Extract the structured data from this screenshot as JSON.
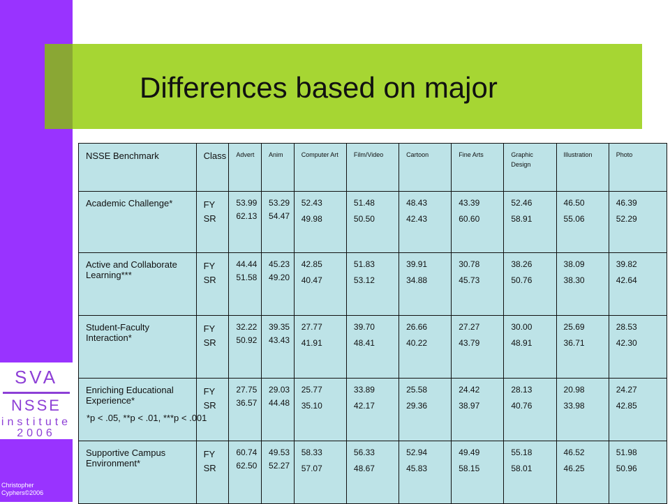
{
  "slide": {
    "title": "Differences based on major",
    "credit": "Christopher Cyphers©2006",
    "footnote": "*p < .05, **p < .01, ***p < .001",
    "colors": {
      "sidebar": "#9933ff",
      "title_bar": "#a6d633",
      "table_bg": "#bde3e7"
    }
  },
  "logo": {
    "line1": "SVA",
    "line2": "NSSE",
    "line3": "institute",
    "line4": "2006"
  },
  "table": {
    "headers": [
      "NSSE Benchmark",
      "Class",
      "Advert",
      "Anim",
      "Computer Art",
      "Film/Video",
      "Cartoon",
      "Fine Arts",
      "Graphic Design",
      "Illustration",
      "Photo"
    ],
    "rows": [
      {
        "benchmark": "Academic Challenge*",
        "classes": [
          "FY",
          "SR"
        ],
        "cells": [
          [
            "53.99",
            "62.13"
          ],
          [
            "53.29",
            "54.47"
          ],
          [
            "52.43",
            "49.98"
          ],
          [
            "51.48",
            "50.50"
          ],
          [
            "48.43",
            "42.43"
          ],
          [
            "43.39",
            "60.60"
          ],
          [
            "52.46",
            "58.91"
          ],
          [
            "46.50",
            "55.06"
          ],
          [
            "46.39",
            "52.29"
          ]
        ]
      },
      {
        "benchmark": "Active and Collaborate Learning***",
        "classes": [
          "FY",
          "SR"
        ],
        "cells": [
          [
            "44.44",
            "51.58"
          ],
          [
            "45.23",
            "49.20"
          ],
          [
            "42.85",
            "40.47"
          ],
          [
            "51.83",
            "53.12"
          ],
          [
            "39.91",
            "34.88"
          ],
          [
            "30.78",
            "45.73"
          ],
          [
            "38.26",
            "50.76"
          ],
          [
            "38.09",
            "38.30"
          ],
          [
            "39.82",
            "42.64"
          ]
        ]
      },
      {
        "benchmark": "Student-Faculty Interaction*",
        "classes": [
          "FY",
          "SR"
        ],
        "cells": [
          [
            "32.22",
            "50.92"
          ],
          [
            "39.35",
            "43.43"
          ],
          [
            "27.77",
            "41.91"
          ],
          [
            "39.70",
            "48.41"
          ],
          [
            "26.66",
            "40.22"
          ],
          [
            "27.27",
            "43.79"
          ],
          [
            "30.00",
            "48.91"
          ],
          [
            "25.69",
            "36.71"
          ],
          [
            "28.53",
            "42.30"
          ]
        ]
      },
      {
        "benchmark": "Enriching Educational Experience*",
        "classes": [
          "FY",
          "SR"
        ],
        "cells": [
          [
            "27.75",
            "36.57"
          ],
          [
            "29.03",
            "44.48"
          ],
          [
            "25.77",
            "35.10"
          ],
          [
            "33.89",
            "42.17"
          ],
          [
            "25.58",
            "29.36"
          ],
          [
            "24.42",
            "38.97"
          ],
          [
            "28.13",
            "40.76"
          ],
          [
            "20.98",
            "33.98"
          ],
          [
            "24.27",
            "42.85"
          ]
        ]
      },
      {
        "benchmark": "Supportive Campus Environment*",
        "classes": [
          "FY",
          "SR"
        ],
        "cells": [
          [
            "60.74",
            "62.50"
          ],
          [
            "49.53",
            "52.27"
          ],
          [
            "58.33",
            "57.07"
          ],
          [
            "56.33",
            "48.67"
          ],
          [
            "52.94",
            "45.83"
          ],
          [
            "49.49",
            "58.15"
          ],
          [
            "55.18",
            "58.01"
          ],
          [
            "46.52",
            "46.25"
          ],
          [
            "51.98",
            "50.96"
          ]
        ]
      }
    ]
  }
}
